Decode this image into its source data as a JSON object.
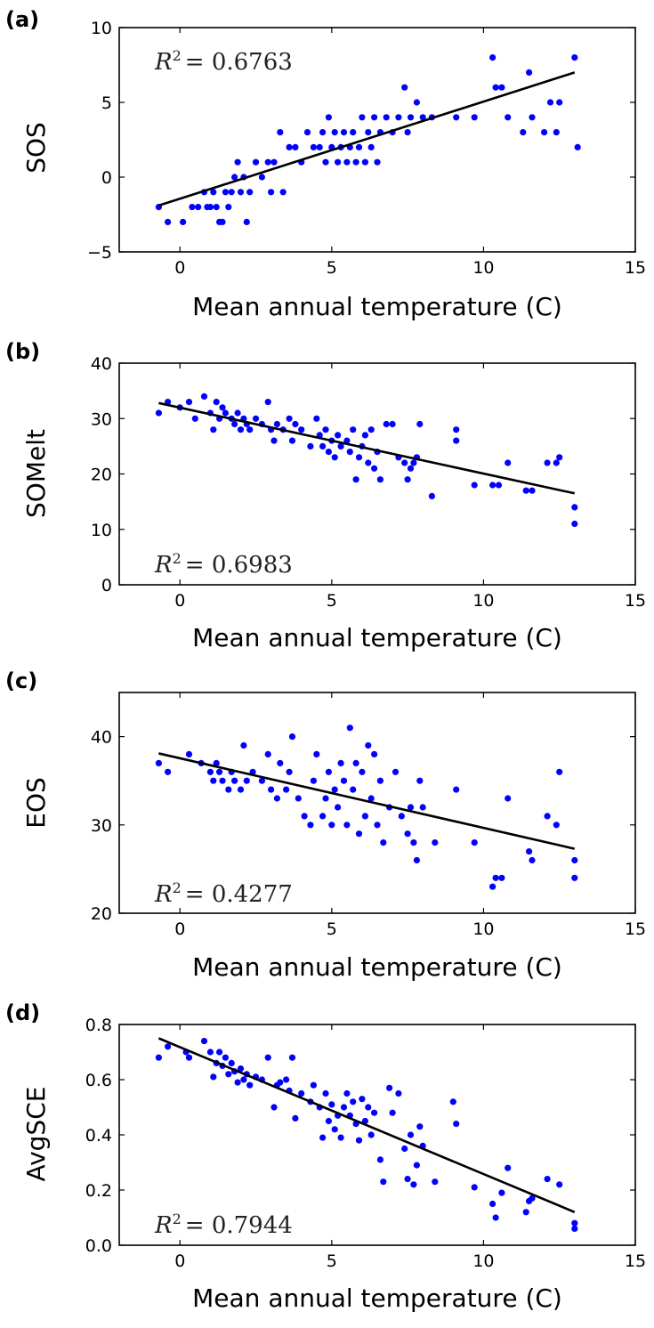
{
  "chart_data": [
    {
      "type": "scatter",
      "panel_label": "(a)",
      "xlabel": "Mean annual temperature (C)",
      "ylabel": "SOS",
      "xlim": [
        -2,
        15
      ],
      "ylim": [
        -5,
        10
      ],
      "xticks": [
        "0",
        "5",
        "10",
        "15"
      ],
      "yticks": [
        "−5",
        "0",
        "5",
        "10"
      ],
      "xtick_values": [
        0,
        5,
        10,
        15
      ],
      "ytick_values": [
        -5,
        0,
        5,
        10
      ],
      "annotation": {
        "prefix": "R",
        "exponent": "2",
        "value": "= 0.6763"
      },
      "annotation_position": "top-left",
      "marker_color": "#0000ff",
      "fit_line_color": "#000000",
      "fit_line": {
        "x": [
          -0.7,
          13.0
        ],
        "y": [
          -1.9,
          7.0
        ]
      },
      "points": [
        [
          -0.7,
          -2
        ],
        [
          -0.4,
          -3
        ],
        [
          0.1,
          -3
        ],
        [
          0.4,
          -2
        ],
        [
          0.6,
          -2
        ],
        [
          0.8,
          -1
        ],
        [
          0.9,
          -2
        ],
        [
          1.0,
          -2
        ],
        [
          1.1,
          -1
        ],
        [
          1.2,
          -2
        ],
        [
          1.3,
          -3
        ],
        [
          1.4,
          -3
        ],
        [
          1.5,
          -1
        ],
        [
          1.6,
          -2
        ],
        [
          1.7,
          -1
        ],
        [
          1.8,
          0
        ],
        [
          1.9,
          1
        ],
        [
          2.0,
          -1
        ],
        [
          2.1,
          0
        ],
        [
          2.2,
          -3
        ],
        [
          2.3,
          -1
        ],
        [
          2.5,
          1
        ],
        [
          2.7,
          0
        ],
        [
          2.9,
          1
        ],
        [
          3.0,
          -1
        ],
        [
          3.1,
          1
        ],
        [
          3.3,
          3
        ],
        [
          3.4,
          -1
        ],
        [
          3.6,
          2
        ],
        [
          3.8,
          2
        ],
        [
          4.0,
          1
        ],
        [
          4.2,
          3
        ],
        [
          4.4,
          2
        ],
        [
          4.6,
          2
        ],
        [
          4.7,
          3
        ],
        [
          4.8,
          1
        ],
        [
          4.9,
          4
        ],
        [
          5.0,
          2
        ],
        [
          5.1,
          3
        ],
        [
          5.2,
          1
        ],
        [
          5.3,
          2
        ],
        [
          5.4,
          3
        ],
        [
          5.5,
          1
        ],
        [
          5.6,
          2
        ],
        [
          5.7,
          3
        ],
        [
          5.8,
          1
        ],
        [
          5.9,
          2
        ],
        [
          6.0,
          4
        ],
        [
          6.1,
          1
        ],
        [
          6.2,
          3
        ],
        [
          6.3,
          2
        ],
        [
          6.4,
          4
        ],
        [
          6.5,
          1
        ],
        [
          6.6,
          3
        ],
        [
          6.8,
          4
        ],
        [
          7.0,
          3
        ],
        [
          7.2,
          4
        ],
        [
          7.4,
          6
        ],
        [
          7.5,
          3
        ],
        [
          7.6,
          4
        ],
        [
          7.8,
          5
        ],
        [
          8.0,
          4
        ],
        [
          8.3,
          4
        ],
        [
          9.1,
          4
        ],
        [
          9.7,
          4
        ],
        [
          10.3,
          8
        ],
        [
          10.4,
          6
        ],
        [
          10.6,
          6
        ],
        [
          10.8,
          4
        ],
        [
          11.3,
          3
        ],
        [
          11.5,
          7
        ],
        [
          11.6,
          4
        ],
        [
          12.0,
          3
        ],
        [
          12.2,
          5
        ],
        [
          12.4,
          3
        ],
        [
          12.5,
          5
        ],
        [
          13.0,
          8
        ],
        [
          13.1,
          2
        ]
      ]
    },
    {
      "type": "scatter",
      "panel_label": "(b)",
      "xlabel": "Mean annual temperature (C)",
      "ylabel": "SOMelt",
      "xlim": [
        -2,
        15
      ],
      "ylim": [
        0,
        40
      ],
      "xticks": [
        "0",
        "5",
        "10",
        "15"
      ],
      "yticks": [
        "0",
        "10",
        "20",
        "30",
        "40"
      ],
      "xtick_values": [
        0,
        5,
        10,
        15
      ],
      "ytick_values": [
        0,
        10,
        20,
        30,
        40
      ],
      "annotation": {
        "prefix": "R",
        "exponent": "2",
        "value": "= 0.6983"
      },
      "annotation_position": "bottom-left",
      "marker_color": "#0000ff",
      "fit_line_color": "#000000",
      "fit_line": {
        "x": [
          -0.7,
          13.0
        ],
        "y": [
          32.8,
          16.5
        ]
      },
      "points": [
        [
          -0.7,
          31
        ],
        [
          -0.4,
          33
        ],
        [
          0.0,
          32
        ],
        [
          0.3,
          33
        ],
        [
          0.5,
          30
        ],
        [
          0.8,
          34
        ],
        [
          1.0,
          31
        ],
        [
          1.1,
          28
        ],
        [
          1.2,
          33
        ],
        [
          1.3,
          30
        ],
        [
          1.4,
          32
        ],
        [
          1.5,
          31
        ],
        [
          1.7,
          30
        ],
        [
          1.8,
          29
        ],
        [
          1.9,
          31
        ],
        [
          2.0,
          28
        ],
        [
          2.1,
          30
        ],
        [
          2.2,
          29
        ],
        [
          2.3,
          28
        ],
        [
          2.5,
          30
        ],
        [
          2.7,
          29
        ],
        [
          2.9,
          33
        ],
        [
          3.0,
          28
        ],
        [
          3.1,
          26
        ],
        [
          3.2,
          29
        ],
        [
          3.4,
          28
        ],
        [
          3.6,
          30
        ],
        [
          3.7,
          26
        ],
        [
          3.8,
          29
        ],
        [
          4.0,
          28
        ],
        [
          4.3,
          25
        ],
        [
          4.5,
          30
        ],
        [
          4.6,
          27
        ],
        [
          4.7,
          25
        ],
        [
          4.8,
          28
        ],
        [
          4.9,
          24
        ],
        [
          5.0,
          26
        ],
        [
          5.1,
          23
        ],
        [
          5.2,
          27
        ],
        [
          5.3,
          25
        ],
        [
          5.5,
          26
        ],
        [
          5.6,
          24
        ],
        [
          5.7,
          28
        ],
        [
          5.8,
          19
        ],
        [
          5.9,
          23
        ],
        [
          6.0,
          25
        ],
        [
          6.1,
          27
        ],
        [
          6.2,
          22
        ],
        [
          6.3,
          28
        ],
        [
          6.4,
          21
        ],
        [
          6.5,
          24
        ],
        [
          6.6,
          19
        ],
        [
          6.8,
          29
        ],
        [
          7.0,
          29
        ],
        [
          7.2,
          23
        ],
        [
          7.4,
          22
        ],
        [
          7.5,
          19
        ],
        [
          7.6,
          21
        ],
        [
          7.7,
          22
        ],
        [
          7.8,
          23
        ],
        [
          7.9,
          29
        ],
        [
          8.3,
          16
        ],
        [
          9.1,
          26
        ],
        [
          9.1,
          28
        ],
        [
          9.7,
          18
        ],
        [
          10.3,
          18
        ],
        [
          10.5,
          18
        ],
        [
          10.8,
          22
        ],
        [
          11.4,
          17
        ],
        [
          11.6,
          17
        ],
        [
          12.1,
          22
        ],
        [
          12.4,
          22
        ],
        [
          12.5,
          23
        ],
        [
          13.0,
          14
        ],
        [
          13.0,
          11
        ]
      ]
    },
    {
      "type": "scatter",
      "panel_label": "(c)",
      "xlabel": "Mean annual temperature (C)",
      "ylabel": "EOS",
      "xlim": [
        -2,
        15
      ],
      "ylim": [
        20,
        45
      ],
      "xticks": [
        "0",
        "5",
        "10",
        "15"
      ],
      "yticks": [
        "20",
        "30",
        "40"
      ],
      "xtick_values": [
        0,
        5,
        10,
        15
      ],
      "ytick_values": [
        20,
        30,
        40
      ],
      "annotation": {
        "prefix": "R",
        "exponent": "2",
        "value": "= 0.4277"
      },
      "annotation_position": "bottom-left",
      "marker_color": "#0000ff",
      "fit_line_color": "#000000",
      "fit_line": {
        "x": [
          -0.7,
          13.0
        ],
        "y": [
          38.1,
          27.3
        ]
      },
      "points": [
        [
          -0.7,
          37
        ],
        [
          -0.4,
          36
        ],
        [
          0.3,
          38
        ],
        [
          0.7,
          37
        ],
        [
          1.0,
          36
        ],
        [
          1.1,
          35
        ],
        [
          1.2,
          37
        ],
        [
          1.3,
          36
        ],
        [
          1.4,
          35
        ],
        [
          1.6,
          34
        ],
        [
          1.7,
          36
        ],
        [
          1.8,
          35
        ],
        [
          2.0,
          34
        ],
        [
          2.1,
          39
        ],
        [
          2.2,
          35
        ],
        [
          2.4,
          36
        ],
        [
          2.7,
          35
        ],
        [
          2.9,
          38
        ],
        [
          3.0,
          34
        ],
        [
          3.2,
          33
        ],
        [
          3.3,
          37
        ],
        [
          3.5,
          34
        ],
        [
          3.6,
          36
        ],
        [
          3.7,
          40
        ],
        [
          3.9,
          33
        ],
        [
          4.1,
          31
        ],
        [
          4.3,
          30
        ],
        [
          4.4,
          35
        ],
        [
          4.5,
          38
        ],
        [
          4.7,
          31
        ],
        [
          4.8,
          33
        ],
        [
          4.9,
          36
        ],
        [
          5.0,
          30
        ],
        [
          5.1,
          34
        ],
        [
          5.2,
          32
        ],
        [
          5.3,
          37
        ],
        [
          5.4,
          35
        ],
        [
          5.5,
          30
        ],
        [
          5.6,
          41
        ],
        [
          5.7,
          34
        ],
        [
          5.8,
          37
        ],
        [
          5.9,
          29
        ],
        [
          6.0,
          36
        ],
        [
          6.1,
          31
        ],
        [
          6.2,
          39
        ],
        [
          6.3,
          33
        ],
        [
          6.4,
          38
        ],
        [
          6.5,
          30
        ],
        [
          6.6,
          35
        ],
        [
          6.7,
          28
        ],
        [
          6.9,
          32
        ],
        [
          7.1,
          36
        ],
        [
          7.3,
          31
        ],
        [
          7.5,
          29
        ],
        [
          7.6,
          32
        ],
        [
          7.7,
          28
        ],
        [
          7.8,
          26
        ],
        [
          7.9,
          35
        ],
        [
          8.0,
          32
        ],
        [
          8.4,
          28
        ],
        [
          9.1,
          34
        ],
        [
          9.7,
          28
        ],
        [
          10.3,
          23
        ],
        [
          10.4,
          24
        ],
        [
          10.6,
          24
        ],
        [
          10.8,
          33
        ],
        [
          11.5,
          27
        ],
        [
          11.6,
          26
        ],
        [
          12.1,
          31
        ],
        [
          12.4,
          30
        ],
        [
          12.5,
          36
        ],
        [
          13.0,
          24
        ],
        [
          13.0,
          26
        ]
      ]
    },
    {
      "type": "scatter",
      "panel_label": "(d)",
      "xlabel": "Mean annual temperature (C)",
      "ylabel": "AvgSCE",
      "xlim": [
        -2,
        15
      ],
      "ylim": [
        0.0,
        0.8
      ],
      "xticks": [
        "0",
        "5",
        "10",
        "15"
      ],
      "yticks": [
        "0.0",
        "0.2",
        "0.4",
        "0.6",
        "0.8"
      ],
      "xtick_values": [
        0,
        5,
        10,
        15
      ],
      "ytick_values": [
        0.0,
        0.2,
        0.4,
        0.6,
        0.8
      ],
      "annotation": {
        "prefix": "R",
        "exponent": "2",
        "value": "= 0.7944"
      },
      "annotation_position": "bottom-left",
      "marker_color": "#0000ff",
      "fit_line_color": "#000000",
      "fit_line": {
        "x": [
          -0.7,
          13.0
        ],
        "y": [
          0.75,
          0.12
        ]
      },
      "points": [
        [
          -0.7,
          0.68
        ],
        [
          -0.4,
          0.72
        ],
        [
          0.2,
          0.7
        ],
        [
          0.3,
          0.68
        ],
        [
          0.8,
          0.74
        ],
        [
          1.0,
          0.7
        ],
        [
          1.1,
          0.61
        ],
        [
          1.2,
          0.66
        ],
        [
          1.3,
          0.7
        ],
        [
          1.4,
          0.65
        ],
        [
          1.5,
          0.68
        ],
        [
          1.6,
          0.62
        ],
        [
          1.7,
          0.66
        ],
        [
          1.8,
          0.63
        ],
        [
          1.9,
          0.59
        ],
        [
          2.0,
          0.64
        ],
        [
          2.1,
          0.6
        ],
        [
          2.2,
          0.62
        ],
        [
          2.3,
          0.58
        ],
        [
          2.5,
          0.61
        ],
        [
          2.7,
          0.6
        ],
        [
          2.9,
          0.68
        ],
        [
          3.1,
          0.5
        ],
        [
          3.2,
          0.58
        ],
        [
          3.3,
          0.59
        ],
        [
          3.5,
          0.6
        ],
        [
          3.6,
          0.56
        ],
        [
          3.7,
          0.68
        ],
        [
          3.8,
          0.46
        ],
        [
          4.0,
          0.55
        ],
        [
          4.3,
          0.52
        ],
        [
          4.4,
          0.58
        ],
        [
          4.6,
          0.5
        ],
        [
          4.7,
          0.39
        ],
        [
          4.8,
          0.55
        ],
        [
          4.9,
          0.45
        ],
        [
          5.0,
          0.51
        ],
        [
          5.1,
          0.42
        ],
        [
          5.2,
          0.47
        ],
        [
          5.3,
          0.39
        ],
        [
          5.4,
          0.5
        ],
        [
          5.5,
          0.55
        ],
        [
          5.6,
          0.47
        ],
        [
          5.7,
          0.52
        ],
        [
          5.8,
          0.44
        ],
        [
          5.9,
          0.38
        ],
        [
          6.0,
          0.53
        ],
        [
          6.1,
          0.45
        ],
        [
          6.2,
          0.5
        ],
        [
          6.3,
          0.4
        ],
        [
          6.4,
          0.48
        ],
        [
          6.6,
          0.31
        ],
        [
          6.7,
          0.23
        ],
        [
          6.9,
          0.57
        ],
        [
          7.0,
          0.48
        ],
        [
          7.2,
          0.55
        ],
        [
          7.4,
          0.35
        ],
        [
          7.5,
          0.24
        ],
        [
          7.6,
          0.4
        ],
        [
          7.7,
          0.22
        ],
        [
          7.8,
          0.29
        ],
        [
          7.9,
          0.43
        ],
        [
          8.0,
          0.36
        ],
        [
          8.4,
          0.23
        ],
        [
          9.0,
          0.52
        ],
        [
          9.1,
          0.44
        ],
        [
          9.7,
          0.21
        ],
        [
          10.3,
          0.15
        ],
        [
          10.4,
          0.1
        ],
        [
          10.6,
          0.19
        ],
        [
          10.8,
          0.28
        ],
        [
          11.4,
          0.12
        ],
        [
          11.5,
          0.16
        ],
        [
          11.6,
          0.17
        ],
        [
          12.1,
          0.24
        ],
        [
          12.5,
          0.22
        ],
        [
          13.0,
          0.08
        ],
        [
          13.0,
          0.06
        ]
      ]
    }
  ]
}
